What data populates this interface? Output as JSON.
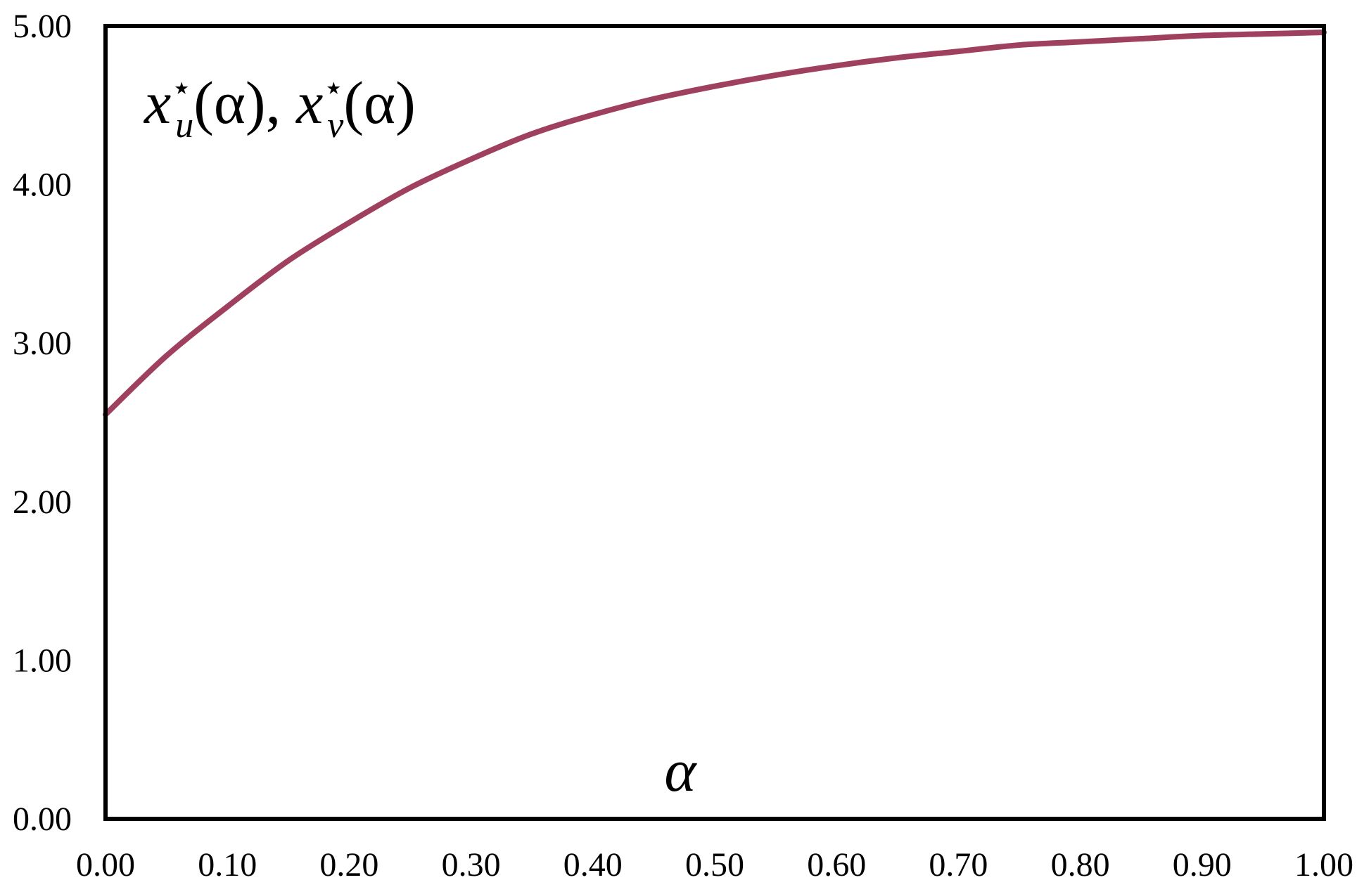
{
  "chart_data": {
    "type": "line",
    "title": "",
    "xlabel": "α",
    "ylabel": "",
    "annotation": {
      "var": "x",
      "sub_u": "u",
      "sub_v": "v",
      "star": "⋆",
      "arg": "(α)",
      "sep": ","
    },
    "xlim": [
      0,
      1
    ],
    "ylim": [
      0,
      5
    ],
    "x_ticks": [
      "0.00",
      "0.10",
      "0.20",
      "0.30",
      "0.40",
      "0.50",
      "0.60",
      "0.70",
      "0.80",
      "0.90",
      "1.00"
    ],
    "y_ticks": [
      "0.00",
      "1.00",
      "2.00",
      "3.00",
      "4.00",
      "5.00"
    ],
    "grid": false,
    "legend": "none",
    "series": [
      {
        "color": "#A0405F",
        "x": [
          0.0,
          0.05,
          0.1,
          0.15,
          0.2,
          0.25,
          0.3,
          0.35,
          0.4,
          0.45,
          0.5,
          0.55,
          0.6,
          0.65,
          0.7,
          0.75,
          0.8,
          0.85,
          0.9,
          0.95,
          1.0
        ],
        "y": [
          2.55,
          2.92,
          3.23,
          3.52,
          3.76,
          3.98,
          4.16,
          4.32,
          4.44,
          4.54,
          4.62,
          4.69,
          4.75,
          4.8,
          4.84,
          4.88,
          4.9,
          4.92,
          4.94,
          4.95,
          4.96
        ]
      }
    ]
  }
}
